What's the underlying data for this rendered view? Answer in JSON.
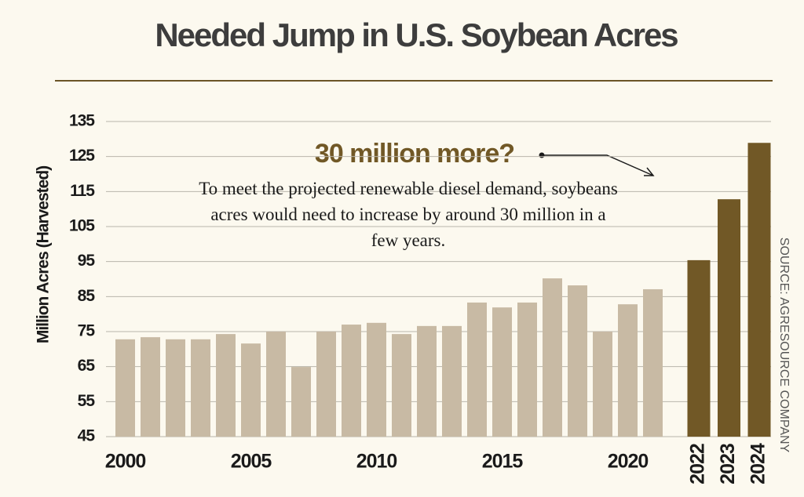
{
  "chart_data": {
    "type": "bar",
    "title": "Needed Jump in U.S. Soybean Acres",
    "y_label": "Million Acres (Harvested)",
    "annotation_title": "30 million more?",
    "annotation_text": "To meet the projected renewable diesel demand, soybeans acres would need to increase by around 30 million in a few years.",
    "source": "SOURCE: AGRESOURCE COMPANY",
    "categories": [
      "2000",
      null,
      null,
      null,
      null,
      "2005",
      null,
      null,
      null,
      null,
      "2010",
      null,
      null,
      null,
      null,
      "2015",
      null,
      null,
      null,
      null,
      "2020",
      null,
      "2022",
      "2023",
      "2024"
    ],
    "values": [
      72.8,
      73.4,
      72.8,
      72.8,
      74.3,
      71.6,
      75,
      64.9,
      75,
      77,
      77.5,
      74.3,
      76.6,
      76.6,
      83.3,
      81.9,
      83.3,
      90.2,
      88.2,
      75,
      82.8,
      87.1,
      95.4,
      112.8,
      128.9
    ],
    "colors": [
      "#c8baa4",
      "#c8baa4",
      "#c8baa4",
      "#c8baa4",
      "#c8baa4",
      "#c8baa4",
      "#c8baa4",
      "#c8baa4",
      "#c8baa4",
      "#c8baa4",
      "#c8baa4",
      "#c8baa4",
      "#c8baa4",
      "#c8baa4",
      "#c8baa4",
      "#c8baa4",
      "#c8baa4",
      "#c8baa4",
      "#c8baa4",
      "#c8baa4",
      "#c8baa4",
      "#c8baa4",
      "#715826",
      "#715826",
      "#715826"
    ],
    "ylim": [
      45,
      135
    ],
    "yticks": [
      45,
      55,
      65,
      75,
      85,
      95,
      105,
      115,
      125,
      135
    ],
    "grid": true
  }
}
